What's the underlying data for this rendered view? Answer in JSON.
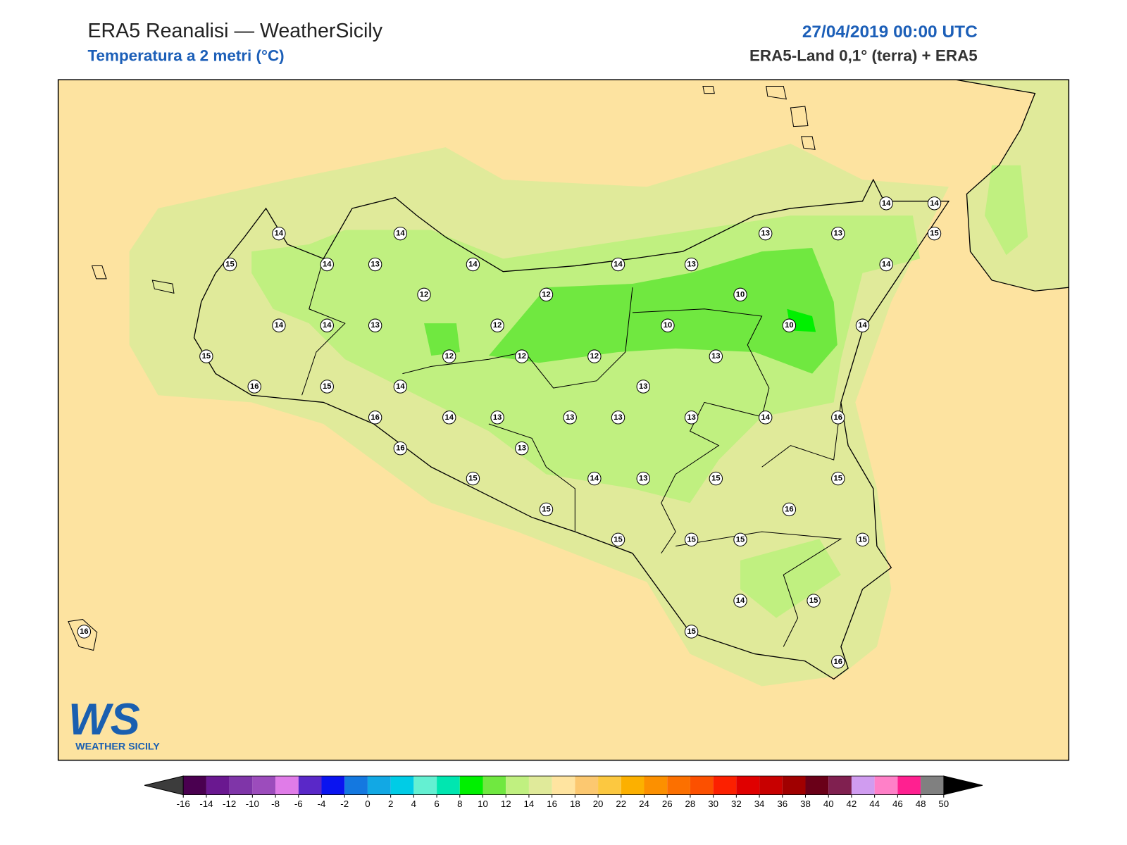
{
  "header": {
    "title": "ERA5 Reanalisi — WeatherSicily",
    "subtitle": "Temperatura a 2 metri (°C)",
    "date": "27/04/2019 00:00 UTC",
    "source": "ERA5-Land 0,1° (terra) + ERA5"
  },
  "stations": [
    14,
    14,
    15,
    14,
    13,
    14,
    14,
    13,
    13,
    13,
    14,
    14,
    15,
    14,
    12,
    12,
    10,
    14,
    14,
    13,
    12,
    10,
    10,
    14,
    15,
    12,
    12,
    12,
    13,
    16,
    15,
    14,
    13,
    16,
    14,
    13,
    13,
    13,
    13,
    14,
    16,
    16,
    13,
    15,
    14,
    13,
    15,
    15,
    16,
    15,
    15,
    15,
    15,
    15,
    14,
    15,
    15,
    16,
    16
  ],
  "logo": {
    "mark": "WS",
    "name": "WEATHER SICILY"
  },
  "colorbar": {
    "ticks": [
      -16,
      -14,
      -12,
      -10,
      -8,
      -6,
      -4,
      -2,
      0,
      2,
      4,
      6,
      8,
      10,
      12,
      14,
      16,
      18,
      20,
      22,
      24,
      26,
      28,
      30,
      32,
      34,
      36,
      38,
      40,
      42,
      44,
      46,
      48,
      50
    ],
    "colors": [
      "#4a0050",
      "#6a1890",
      "#7f35a8",
      "#9c4cbc",
      "#e07ce8",
      "#5a28c8",
      "#0a14f0",
      "#1478e0",
      "#12a8e4",
      "#00cce6",
      "#64f0d2",
      "#00e6b0",
      "#00f000",
      "#70e840",
      "#c0f080",
      "#e0ea9a",
      "#ffe4a0",
      "#fcc870",
      "#fcc840",
      "#fcb000",
      "#fc9000",
      "#fc7000",
      "#fc5000",
      "#fc2000",
      "#e00000",
      "#c80000",
      "#a00000",
      "#6a0018",
      "#802050",
      "#d09cf0",
      "#ff80c8",
      "#ff2090",
      "#808080",
      "#404040"
    ],
    "under_color": "#3c3c3c",
    "over_color": "#000000"
  }
}
